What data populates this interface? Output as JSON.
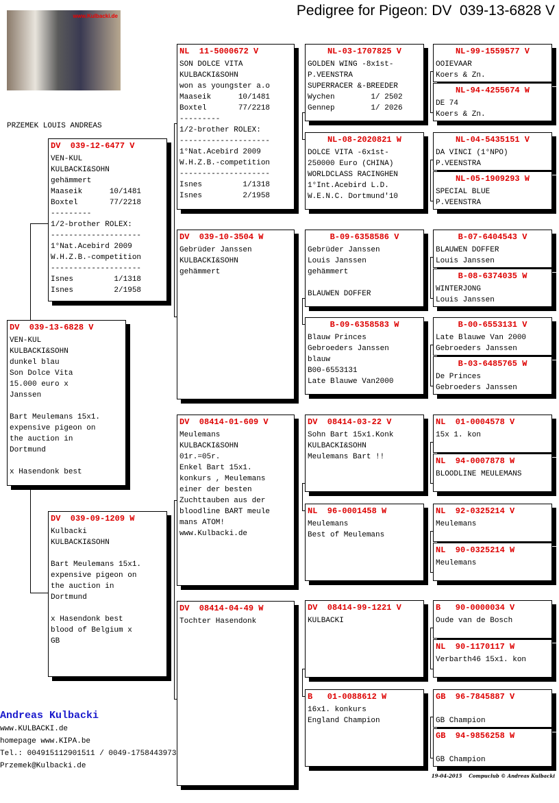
{
  "title": "Pedigree for Pigeon: DV  039-13-6828 V",
  "photo_logo": "www.Kulbacki.de",
  "owner_line": "PRZEMEK LOUIS ANDREAS",
  "colors": {
    "ring_id": "#dd0000",
    "breeder_name": "#1a1acc"
  },
  "pigeons": {
    "subject": {
      "id": "DV  039-13-6828 V",
      "lines": [
        "VEN-KUL",
        "KULBACKI&SOHN",
        "dunkel blau",
        "Son Dolce Vita",
        "15.000 euro x",
        "Janssen",
        "",
        "Bart Meulemans 15x1.",
        "expensive pigeon on",
        "the auction in",
        "Dortmund",
        "",
        "x Hasendonk best"
      ]
    },
    "sire": {
      "id": "DV  039-12-6477 V",
      "lines": [
        "VEN-KUL",
        "KULBACKI&SOHN",
        "gehämmert",
        "Maaseik      10/1481",
        "Boxtel       77/2218",
        "---------",
        "1/2-brother ROLEX:",
        "--------------------",
        "1°Nat.Acebird 2009",
        "W.H.Z.B.-competition",
        "--------------------",
        "Isnes         1/1318",
        "Isnes         2/1958"
      ]
    },
    "dam": {
      "id": "DV  039-09-1209 W",
      "lines": [
        "Kulbacki",
        "KULBACKI&SOHN",
        "",
        "Bart Meulemans 15x1.",
        "expensive pigeon on",
        "the auction in",
        "Dortmund",
        "",
        "x Hasendonk best",
        "blood of Belgium x",
        "GB"
      ]
    },
    "gen2": [
      {
        "id": "NL  11-5000672 V",
        "lines": [
          "SON DOLCE VITA",
          "KULBACKI&SOHN",
          "won as youngster a.o",
          "Maaseik      10/1481",
          "Boxtel       77/2218",
          "---------",
          "1/2-brother ROLEX:",
          "--------------------",
          "1°Nat.Acebird 2009",
          "W.H.Z.B.-competition",
          "--------------------",
          "Isnes         1/1318",
          "Isnes         2/1958"
        ]
      },
      {
        "id": "DV  039-10-3504 W",
        "lines": [
          "Gebrüder Janssen",
          "KULBACKI&SOHN",
          "gehämmert"
        ]
      },
      {
        "id": "DV  08414-01-609 V",
        "lines": [
          "Meulemans",
          "KULBACKI&SOHN",
          "01r.=05r.",
          "Enkel Bart 15x1.",
          "konkurs , Meulemans",
          "einer der besten",
          "Zuchttauben aus der",
          "bloodline BART meule",
          "mans ATOM!",
          "www.Kulbacki.de"
        ]
      },
      {
        "id": "DV  08414-04-49 W",
        "lines": [
          "Tochter Hasendonk"
        ]
      }
    ],
    "gen3": [
      {
        "id": "NL-03-1707825 V",
        "lines": [
          "GOLDEN WING -8x1st-",
          "P.VEENSTRA",
          "SUPERRACER &-BREEDER",
          "Wychen        1/ 2502",
          "Gennep        1/ 2026"
        ]
      },
      {
        "id": "NL-08-2020821 W",
        "lines": [
          "DOLCE VITA -6x1st-",
          "250000 Euro (CHINA)",
          "WORLDCLASS RACINGHEN",
          "1°Int.Acebird L.D.",
          "W.E.N.C. Dortmund'10"
        ]
      },
      {
        "id": "B-09-6358586 V",
        "lines": [
          "Gebrüder Janssen",
          "Louis Janssen",
          "gehämmert",
          "",
          "BLAUWEN DOFFER"
        ]
      },
      {
        "id": "B-09-6358583 W",
        "lines": [
          "Blauw Princes",
          "Gebroeders Janssen",
          "blauw",
          "B00-6553131",
          "Late Blauwe Van2000"
        ]
      },
      {
        "id": "DV  08414-03-22 V",
        "lines": [
          "Sohn Bart 15x1.Konk",
          "KULBACKI&SOHN",
          "Meulemans Bart !!"
        ]
      },
      {
        "id": "NL  96-0001458 W",
        "lines": [
          "Meulemans",
          "Best of Meulemans"
        ]
      },
      {
        "id": "DV  08414-99-1221 V",
        "lines": [
          "KULBACKI"
        ]
      },
      {
        "id": "B   01-0088612 W",
        "lines": [
          "16x1. konkurs",
          "England Champion"
        ]
      }
    ],
    "gen4": [
      {
        "id": "NL-99-1559577 V",
        "lines": [
          "OOIEVAAR",
          "Koers & Zn."
        ]
      },
      {
        "id": "NL-94-4255674 W",
        "lines": [
          "DE 74",
          "Koers & Zn."
        ]
      },
      {
        "id": "NL-04-5435151 V",
        "lines": [
          "DA VINCI (1°NPO)",
          "P.VEENSTRA"
        ]
      },
      {
        "id": "NL-05-1909293 W",
        "lines": [
          "SPECIAL BLUE",
          "P.VEENSTRA"
        ]
      },
      {
        "id": "B-07-6404543 V",
        "lines": [
          "BLAUWEN DOFFER",
          "Louis Janssen"
        ]
      },
      {
        "id": "B-08-6374035 W",
        "lines": [
          "WINTERJONG",
          "Louis Janssen"
        ]
      },
      {
        "id": "B-00-6553131 V",
        "lines": [
          "Late Blauwe Van 2000",
          "Gebroeders Janssen"
        ]
      },
      {
        "id": "B-03-6485765 W",
        "lines": [
          "De Princes",
          "Gebroeders Janssen"
        ]
      },
      {
        "id": "NL  01-0004578 V",
        "lines": [
          "15x 1. kon"
        ]
      },
      {
        "id": "NL  94-0007878 W",
        "lines": [
          "BLOODLINE MEULEMANS"
        ]
      },
      {
        "id": "NL  92-0325214 V",
        "lines": [
          "Meulemans"
        ]
      },
      {
        "id": "NL  90-0325214 W",
        "lines": [
          "Meulemans"
        ]
      },
      {
        "id": "B   90-0000034 V",
        "lines": [
          "Oude van de Bosch"
        ]
      },
      {
        "id": "NL  90-1170117 W",
        "lines": [
          "Verbarth46 15x1. kon"
        ]
      },
      {
        "id": "GB  96-7845887 V",
        "lines": [
          "",
          "GB Champion"
        ]
      },
      {
        "id": "GB  94-9856258 W",
        "lines": [
          "",
          "GB Champion"
        ]
      }
    ]
  },
  "contact": {
    "name": "Andreas Kulbacki",
    "website": "www.KULBACKI.de",
    "homepage": "homepage  www.KIPA.be",
    "phone": "Tel.: 004915112901511 / 0049-1758443973",
    "email": "Przemek@Kulbacki.de"
  },
  "footer": "19-04-2015    Compuclub © Andreas Kulbacki"
}
